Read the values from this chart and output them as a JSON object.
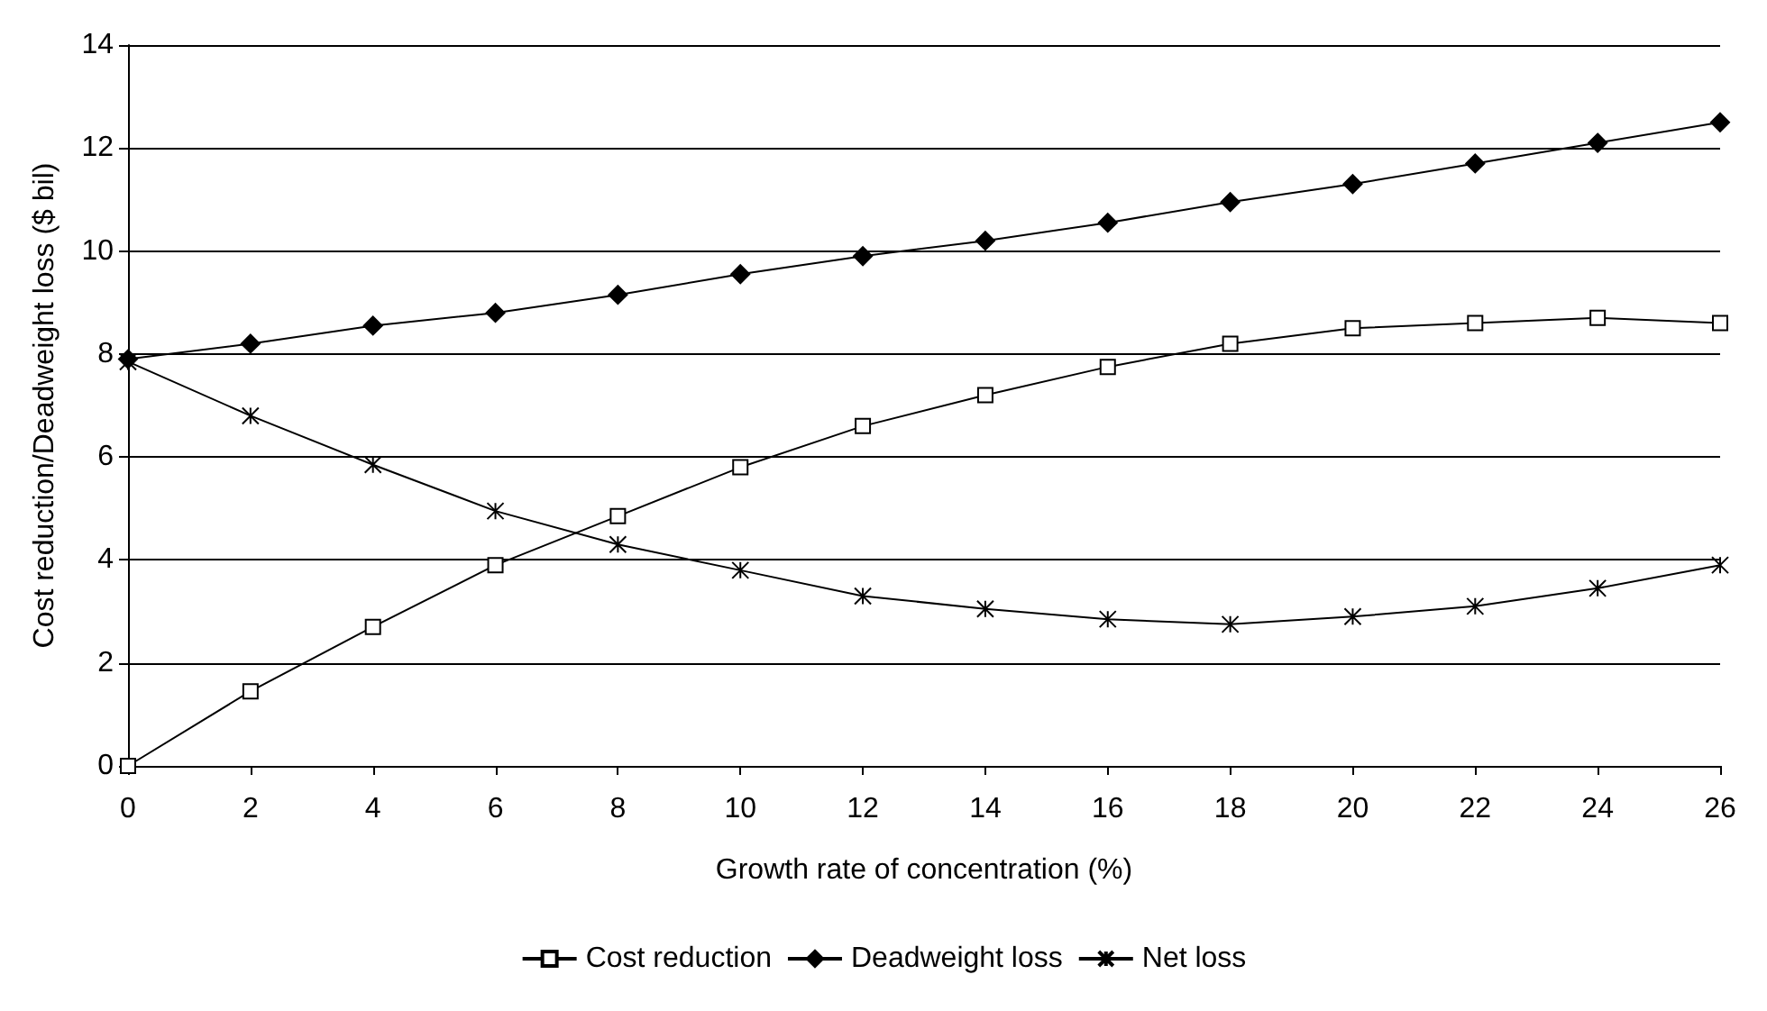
{
  "chart_data": {
    "type": "line",
    "xlabel": "Growth rate of concentration (%)",
    "ylabel": "Cost reduction/Deadweight loss ($ bil)",
    "x": [
      0,
      2,
      4,
      6,
      8,
      10,
      12,
      14,
      16,
      18,
      20,
      22,
      24,
      26
    ],
    "xlim": [
      0,
      26
    ],
    "xticks": [
      0,
      2,
      4,
      6,
      8,
      10,
      12,
      14,
      16,
      18,
      20,
      22,
      24,
      26
    ],
    "ylim": [
      0,
      14
    ],
    "yticks": [
      0,
      2,
      4,
      6,
      8,
      10,
      12,
      14
    ],
    "grid": "y",
    "legend": "bottom",
    "line_style": "solid",
    "series": [
      {
        "name": "Cost reduction",
        "color": "#000000",
        "marker": "square",
        "values": [
          0,
          1.45,
          2.7,
          3.9,
          4.85,
          5.8,
          6.6,
          7.2,
          7.75,
          8.2,
          8.5,
          8.6,
          8.7,
          8.6
        ]
      },
      {
        "name": "Deadweight loss",
        "color": "#000000",
        "marker": "diamond",
        "values": [
          7.9,
          8.2,
          8.55,
          8.8,
          9.15,
          9.55,
          9.9,
          10.2,
          10.55,
          10.95,
          11.3,
          11.7,
          12.1,
          12.5
        ]
      },
      {
        "name": "Net loss",
        "color": "#000000",
        "marker": "cross",
        "values": [
          7.85,
          6.8,
          5.85,
          4.95,
          4.3,
          3.8,
          3.3,
          3.05,
          2.85,
          2.75,
          2.9,
          3.1,
          3.45,
          3.9
        ]
      }
    ]
  }
}
